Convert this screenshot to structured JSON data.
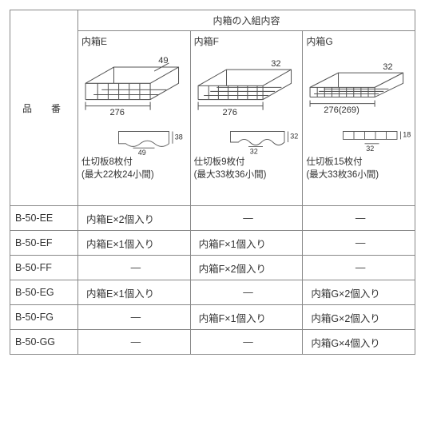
{
  "header": {
    "group_title": "内箱の入組内容",
    "row_label": "品　番"
  },
  "boxes": {
    "E": {
      "title": "内箱E",
      "dims": {
        "width": "276",
        "height": "49",
        "depth": "38",
        "div_w": "49"
      },
      "desc_line1": "仕切板8枚付",
      "desc_line2": "(最大22枚24小間)"
    },
    "F": {
      "title": "内箱F",
      "dims": {
        "width": "276",
        "height": "32",
        "depth": "32",
        "div_w": "32"
      },
      "desc_line1": "仕切板9枚付",
      "desc_line2": "(最大33枚36小間)"
    },
    "G": {
      "title": "内箱G",
      "dims": {
        "width": "276(269)",
        "height": "32",
        "depth": "18",
        "div_w": "32"
      },
      "desc_line1": "仕切板15枚付",
      "desc_line2": "(最大33枚36小間)"
    }
  },
  "rows": [
    {
      "model": "B-50-EE",
      "E": "内箱E×2個入り",
      "F": "—",
      "G": "—"
    },
    {
      "model": "B-50-EF",
      "E": "内箱E×1個入り",
      "F": "内箱F×1個入り",
      "G": "—"
    },
    {
      "model": "B-50-FF",
      "E": "—",
      "F": "内箱F×2個入り",
      "G": "—"
    },
    {
      "model": "B-50-EG",
      "E": "内箱E×1個入り",
      "F": "—",
      "G": "内箱G×2個入り"
    },
    {
      "model": "B-50-FG",
      "E": "—",
      "F": "内箱F×1個入り",
      "G": "内箱G×2個入り"
    },
    {
      "model": "B-50-GG",
      "E": "—",
      "F": "—",
      "G": "内箱G×4個入り"
    }
  ]
}
